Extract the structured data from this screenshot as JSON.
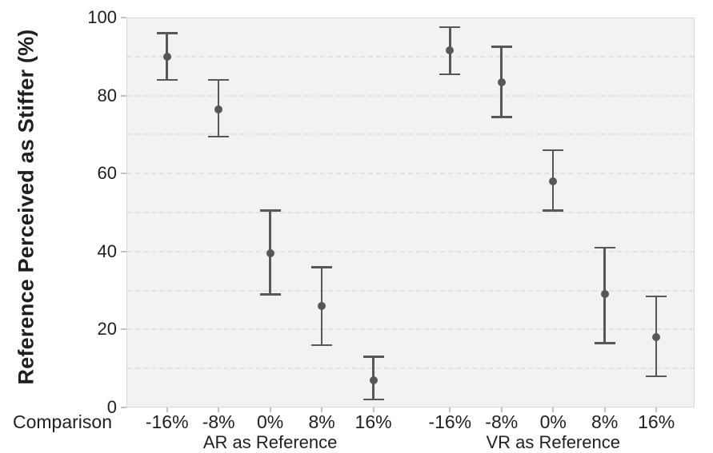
{
  "chart_data": {
    "type": "scatter",
    "subtype": "point-with-error-bars",
    "title": "",
    "ylabel": "Reference Perceived as Stiffer (%)",
    "xlabel": "Comparison",
    "ylim": [
      0,
      100
    ],
    "yticks": [
      0,
      20,
      40,
      60,
      80,
      100
    ],
    "grid": "horizontal dashed lines every 10 units",
    "legend_position": "none",
    "categories": [
      "-16%",
      "-8%",
      "0%",
      "8%",
      "16%"
    ],
    "series": [
      {
        "name": "AR as Reference",
        "points": [
          {
            "x": "-16%",
            "mean": 90,
            "ci_low": 84,
            "ci_high": 96
          },
          {
            "x": "-8%",
            "mean": 76.5,
            "ci_low": 69.5,
            "ci_high": 84
          },
          {
            "x": "0%",
            "mean": 39.5,
            "ci_low": 29,
            "ci_high": 50.5
          },
          {
            "x": "8%",
            "mean": 26,
            "ci_low": 16,
            "ci_high": 36
          },
          {
            "x": "16%",
            "mean": 7,
            "ci_low": 2,
            "ci_high": 13
          }
        ]
      },
      {
        "name": "VR as Reference",
        "points": [
          {
            "x": "-16%",
            "mean": 91.5,
            "ci_low": 85.5,
            "ci_high": 97.5
          },
          {
            "x": "-8%",
            "mean": 83.5,
            "ci_low": 74.5,
            "ci_high": 92.5
          },
          {
            "x": "0%",
            "mean": 58,
            "ci_low": 50.5,
            "ci_high": 66
          },
          {
            "x": "8%",
            "mean": 29,
            "ci_low": 16.5,
            "ci_high": 41
          },
          {
            "x": "16%",
            "mean": 18,
            "ci_low": 8,
            "ci_high": 28.5
          }
        ]
      }
    ],
    "colors": {
      "marker": "#575757",
      "plot_background": "#f2f2f2",
      "gridline": "#e2e2e2",
      "plot_border": "#d9d9d9",
      "tick": "#c2c2c2",
      "text": "#1f1f1f"
    }
  }
}
